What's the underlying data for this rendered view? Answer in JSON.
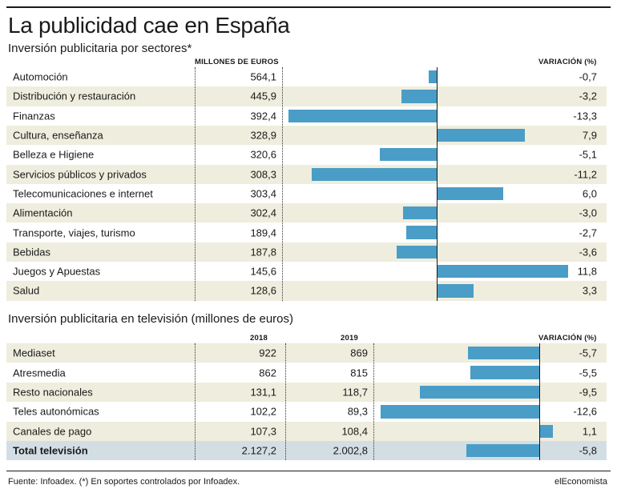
{
  "title": "La publicidad cae en España",
  "sectors": {
    "subtitle": "Inversión publicitaria por sectores*",
    "col_value": "MILLONES DE EUROS",
    "col_change": "VARIACIÓN (%)",
    "rows": [
      {
        "label": "Automoción",
        "value": "564,1",
        "change": "-0,7"
      },
      {
        "label": "Distribución y restauración",
        "value": "445,9",
        "change": "-3,2"
      },
      {
        "label": "Finanzas",
        "value": "392,4",
        "change": "-13,3"
      },
      {
        "label": "Cultura, enseñanza",
        "value": "328,9",
        "change": "7,9"
      },
      {
        "label": "Belleza e Higiene",
        "value": "320,6",
        "change": "-5,1"
      },
      {
        "label": "Servicios públicos y privados",
        "value": "308,3",
        "change": "-11,2"
      },
      {
        "label": "Telecomunicaciones e internet",
        "value": "303,4",
        "change": "6,0"
      },
      {
        "label": "Alimentación",
        "value": "302,4",
        "change": "-3,0"
      },
      {
        "label": "Transporte, viajes, turismo",
        "value": "189,4",
        "change": "-2,7"
      },
      {
        "label": "Bebidas",
        "value": "187,8",
        "change": "-3,6"
      },
      {
        "label": "Juegos y Apuestas",
        "value": "145,6",
        "change": "11,8"
      },
      {
        "label": "Salud",
        "value": "128,6",
        "change": "3,3"
      }
    ]
  },
  "tv": {
    "subtitle": "Inversión publicitaria en televisión (millones de euros)",
    "col_2018": "2018",
    "col_2019": "2019",
    "col_change": "VARIACIÓN (%)",
    "rows": [
      {
        "label": "Mediaset",
        "v2018": "922",
        "v2019": "869",
        "change": "-5,7"
      },
      {
        "label": "Atresmedia",
        "v2018": "862",
        "v2019": "815",
        "change": "-5,5"
      },
      {
        "label": "Resto nacionales",
        "v2018": "131,1",
        "v2019": "118,7",
        "change": "-9,5"
      },
      {
        "label": "Teles autonómicas",
        "v2018": "102,2",
        "v2019": "89,3",
        "change": "-12,6"
      },
      {
        "label": "Canales de pago",
        "v2018": "107,3",
        "v2019": "108,4",
        "change": "1,1"
      }
    ],
    "total": {
      "label": "Total televisión",
      "v2018": "2.127,2",
      "v2019": "2.002,8",
      "change": "-5,8"
    }
  },
  "footer": {
    "source": "Fuente: Infoadex. (*) En soportes controlados por Infoadex.",
    "brand": "elEconomista"
  },
  "colors": {
    "bar": "#4a9dc6",
    "row_shade": "#efeddd",
    "total_shade": "#d3dee4"
  },
  "chart_data": [
    {
      "type": "bar",
      "orientation": "horizontal",
      "title": "Inversión publicitaria por sectores*",
      "categories": [
        "Automoción",
        "Distribución y restauración",
        "Finanzas",
        "Cultura, enseñanza",
        "Belleza e Higiene",
        "Servicios públicos y privados",
        "Telecomunicaciones e internet",
        "Alimentación",
        "Transporte, viajes, turismo",
        "Bebidas",
        "Juegos y Apuestas",
        "Salud"
      ],
      "millones_de_euros": [
        564.1,
        445.9,
        392.4,
        328.9,
        320.6,
        308.3,
        303.4,
        302.4,
        189.4,
        187.8,
        145.6,
        128.6
      ],
      "values": [
        -0.7,
        -3.2,
        -13.3,
        7.9,
        -5.1,
        -11.2,
        6.0,
        -3.0,
        -2.7,
        -3.6,
        11.8,
        3.3
      ],
      "xlabel": "VARIACIÓN (%)",
      "grid": false
    },
    {
      "type": "bar",
      "orientation": "horizontal",
      "title": "Inversión publicitaria en televisión (millones de euros)",
      "categories": [
        "Mediaset",
        "Atresmedia",
        "Resto nacionales",
        "Teles autonómicas",
        "Canales de pago",
        "Total televisión"
      ],
      "v2018": [
        922,
        862,
        131.1,
        102.2,
        107.3,
        2127.2
      ],
      "v2019": [
        869,
        815,
        118.7,
        89.3,
        108.4,
        2002.8
      ],
      "values": [
        -5.7,
        -5.5,
        -9.5,
        -12.6,
        1.1,
        -5.8
      ],
      "xlabel": "VARIACIÓN (%)",
      "grid": false
    }
  ]
}
